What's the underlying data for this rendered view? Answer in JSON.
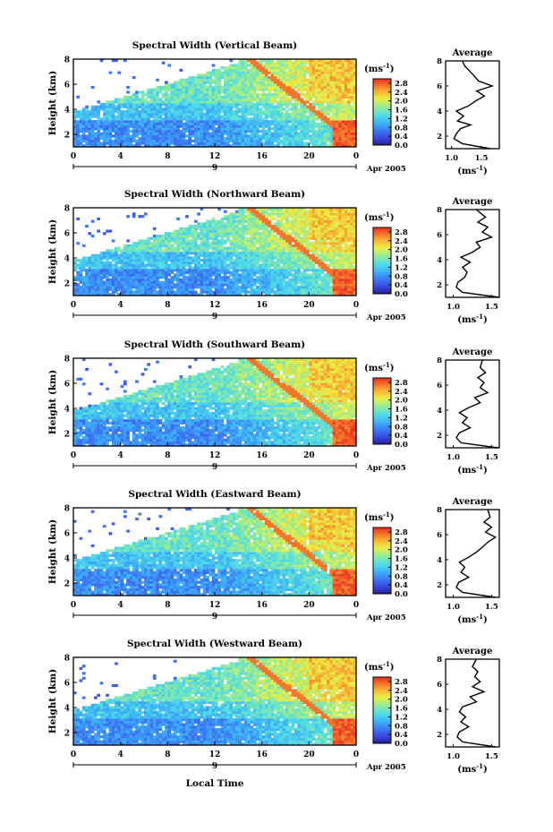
{
  "figure": {
    "xlabel": "Local Time",
    "date_label": "Apr 2005",
    "day_label": "9",
    "colorbar_unit_parts": [
      "(ms",
      "-1",
      ")"
    ],
    "average_title": "Average"
  },
  "chart_data": [
    {
      "type": "heatmap",
      "title": "Spectral Width (Vertical Beam)",
      "xlabel": "",
      "ylabel": "Height (km)",
      "x_ticks": [
        "0",
        "4",
        "8",
        "12",
        "16",
        "20",
        "0"
      ],
      "y_ticks": [
        "2",
        "4",
        "6",
        "8"
      ],
      "xlim": [
        0,
        24
      ],
      "ylim": [
        1,
        8
      ],
      "colorbar": {
        "ticks": [
          "0.0",
          "0.4",
          "0.8",
          "1.2",
          "1.6",
          "2.0",
          "2.4",
          "2.8"
        ],
        "range": [
          0.0,
          3.0
        ]
      },
      "average": {
        "title": "Average",
        "x_ticks": [
          "1.0",
          "1.5"
        ],
        "xlim": [
          0.9,
          1.8
        ],
        "y_ticks": [
          "2",
          "4",
          "6",
          "8"
        ],
        "ylim": [
          1,
          8
        ],
        "profile": [
          {
            "h": 1.0,
            "v": 1.65
          },
          {
            "h": 1.4,
            "v": 1.18
          },
          {
            "h": 1.8,
            "v": 1.04
          },
          {
            "h": 2.2,
            "v": 1.08
          },
          {
            "h": 2.6,
            "v": 1.15
          },
          {
            "h": 2.9,
            "v": 1.32
          },
          {
            "h": 3.2,
            "v": 1.1
          },
          {
            "h": 3.6,
            "v": 1.2
          },
          {
            "h": 4.0,
            "v": 1.08
          },
          {
            "h": 4.4,
            "v": 1.28
          },
          {
            "h": 4.8,
            "v": 1.4
          },
          {
            "h": 5.2,
            "v": 1.55
          },
          {
            "h": 5.6,
            "v": 1.42
          },
          {
            "h": 6.0,
            "v": 1.68
          },
          {
            "h": 6.4,
            "v": 1.45
          },
          {
            "h": 6.8,
            "v": 1.38
          },
          {
            "h": 7.2,
            "v": 1.3
          },
          {
            "h": 7.6,
            "v": 1.22
          },
          {
            "h": 8.0,
            "v": 1.18
          }
        ]
      }
    },
    {
      "type": "heatmap",
      "title": "Spectral Width (Northward Beam)",
      "xlabel": "",
      "ylabel": "Height (km)",
      "x_ticks": [
        "0",
        "4",
        "8",
        "12",
        "16",
        "20",
        "0"
      ],
      "y_ticks": [
        "2",
        "4",
        "6",
        "8"
      ],
      "xlim": [
        0,
        24
      ],
      "ylim": [
        1,
        8
      ],
      "colorbar": {
        "ticks": [
          "0.0",
          "0.4",
          "0.8",
          "1.2",
          "1.6",
          "2.0",
          "2.4",
          "2.8"
        ],
        "range": [
          0.0,
          3.0
        ]
      },
      "average": {
        "title": "Average",
        "x_ticks": [
          "1.0",
          "1.5"
        ],
        "xlim": [
          0.9,
          1.6
        ],
        "y_ticks": [
          "2",
          "4",
          "6",
          "8"
        ],
        "ylim": [
          1,
          8
        ],
        "profile": [
          {
            "h": 1.0,
            "v": 1.6
          },
          {
            "h": 1.4,
            "v": 1.12
          },
          {
            "h": 1.8,
            "v": 1.04
          },
          {
            "h": 2.2,
            "v": 1.06
          },
          {
            "h": 2.6,
            "v": 1.15
          },
          {
            "h": 3.0,
            "v": 1.18
          },
          {
            "h": 3.4,
            "v": 1.12
          },
          {
            "h": 3.8,
            "v": 1.22
          },
          {
            "h": 4.2,
            "v": 1.1
          },
          {
            "h": 4.6,
            "v": 1.25
          },
          {
            "h": 5.0,
            "v": 1.35
          },
          {
            "h": 5.4,
            "v": 1.3
          },
          {
            "h": 5.8,
            "v": 1.5
          },
          {
            "h": 6.2,
            "v": 1.38
          },
          {
            "h": 6.6,
            "v": 1.45
          },
          {
            "h": 7.0,
            "v": 1.32
          },
          {
            "h": 7.4,
            "v": 1.42
          },
          {
            "h": 8.0,
            "v": 1.3
          }
        ]
      }
    },
    {
      "type": "heatmap",
      "title": "Spectral Width (Southward Beam)",
      "xlabel": "",
      "ylabel": "Height (km)",
      "x_ticks": [
        "0",
        "4",
        "8",
        "12",
        "16",
        "20",
        "0"
      ],
      "y_ticks": [
        "2",
        "4",
        "6",
        "8"
      ],
      "xlim": [
        0,
        24
      ],
      "ylim": [
        1,
        8
      ],
      "colorbar": {
        "ticks": [
          "0.0",
          "0.4",
          "0.8",
          "1.2",
          "1.6",
          "2.0",
          "2.4",
          "2.8"
        ],
        "range": [
          0.0,
          3.0
        ]
      },
      "average": {
        "title": "Average",
        "x_ticks": [
          "1.0",
          "1.5"
        ],
        "xlim": [
          0.9,
          1.6
        ],
        "y_ticks": [
          "2",
          "4",
          "6",
          "8"
        ],
        "ylim": [
          1,
          8
        ],
        "profile": [
          {
            "h": 1.0,
            "v": 1.58
          },
          {
            "h": 1.4,
            "v": 1.1
          },
          {
            "h": 1.8,
            "v": 1.04
          },
          {
            "h": 2.2,
            "v": 1.08
          },
          {
            "h": 2.6,
            "v": 1.22
          },
          {
            "h": 3.0,
            "v": 1.12
          },
          {
            "h": 3.4,
            "v": 1.18
          },
          {
            "h": 3.8,
            "v": 1.08
          },
          {
            "h": 4.2,
            "v": 1.2
          },
          {
            "h": 4.6,
            "v": 1.35
          },
          {
            "h": 5.0,
            "v": 1.28
          },
          {
            "h": 5.4,
            "v": 1.45
          },
          {
            "h": 5.8,
            "v": 1.35
          },
          {
            "h": 6.2,
            "v": 1.4
          },
          {
            "h": 6.6,
            "v": 1.32
          },
          {
            "h": 7.0,
            "v": 1.42
          },
          {
            "h": 7.4,
            "v": 1.35
          },
          {
            "h": 8.0,
            "v": 1.38
          }
        ]
      }
    },
    {
      "type": "heatmap",
      "title": "Spectral Width (Eastward Beam)",
      "xlabel": "",
      "ylabel": "Height (km)",
      "x_ticks": [
        "0",
        "4",
        "8",
        "12",
        "16",
        "20",
        "0"
      ],
      "y_ticks": [
        "2",
        "4",
        "6",
        "8"
      ],
      "xlim": [
        0,
        24
      ],
      "ylim": [
        1,
        8
      ],
      "colorbar": {
        "ticks": [
          "0.0",
          "0.4",
          "0.8",
          "1.2",
          "1.6",
          "2.0",
          "2.4",
          "2.8"
        ],
        "range": [
          0.0,
          3.0
        ]
      },
      "average": {
        "title": "Average",
        "x_ticks": [
          "1.0",
          "1.5"
        ],
        "xlim": [
          0.9,
          1.6
        ],
        "y_ticks": [
          "2",
          "4",
          "6",
          "8"
        ],
        "ylim": [
          1,
          8
        ],
        "profile": [
          {
            "h": 1.0,
            "v": 1.55
          },
          {
            "h": 1.4,
            "v": 1.12
          },
          {
            "h": 1.8,
            "v": 1.04
          },
          {
            "h": 2.2,
            "v": 1.07
          },
          {
            "h": 2.6,
            "v": 1.2
          },
          {
            "h": 3.0,
            "v": 1.1
          },
          {
            "h": 3.4,
            "v": 1.15
          },
          {
            "h": 3.8,
            "v": 1.08
          },
          {
            "h": 4.2,
            "v": 1.2
          },
          {
            "h": 4.6,
            "v": 1.3
          },
          {
            "h": 5.0,
            "v": 1.38
          },
          {
            "h": 5.4,
            "v": 1.45
          },
          {
            "h": 5.8,
            "v": 1.55
          },
          {
            "h": 6.2,
            "v": 1.42
          },
          {
            "h": 6.6,
            "v": 1.5
          },
          {
            "h": 7.0,
            "v": 1.4
          },
          {
            "h": 7.4,
            "v": 1.48
          },
          {
            "h": 8.0,
            "v": 1.45
          }
        ]
      }
    },
    {
      "type": "heatmap",
      "title": "Spectral Width (Westward Beam)",
      "xlabel": "Local Time",
      "ylabel": "Height (km)",
      "x_ticks": [
        "0",
        "4",
        "8",
        "12",
        "16",
        "20",
        "0"
      ],
      "y_ticks": [
        "2",
        "4",
        "6",
        "8"
      ],
      "xlim": [
        0,
        24
      ],
      "ylim": [
        1,
        8
      ],
      "colorbar": {
        "ticks": [
          "0.0",
          "0.4",
          "0.8",
          "1.2",
          "1.6",
          "2.0",
          "2.4",
          "2.8"
        ],
        "range": [
          0.0,
          3.0
        ]
      },
      "average": {
        "title": "Average",
        "x_ticks": [
          "1.0",
          "1.5"
        ],
        "xlim": [
          0.9,
          1.6
        ],
        "y_ticks": [
          "2",
          "4",
          "6",
          "8"
        ],
        "ylim": [
          1,
          8
        ],
        "profile": [
          {
            "h": 1.0,
            "v": 1.55
          },
          {
            "h": 1.4,
            "v": 1.12
          },
          {
            "h": 1.8,
            "v": 1.05
          },
          {
            "h": 2.2,
            "v": 1.08
          },
          {
            "h": 2.6,
            "v": 1.2
          },
          {
            "h": 3.0,
            "v": 1.1
          },
          {
            "h": 3.4,
            "v": 1.16
          },
          {
            "h": 3.8,
            "v": 1.08
          },
          {
            "h": 4.2,
            "v": 1.12
          },
          {
            "h": 4.6,
            "v": 1.3
          },
          {
            "h": 5.0,
            "v": 1.22
          },
          {
            "h": 5.4,
            "v": 1.4
          },
          {
            "h": 5.8,
            "v": 1.25
          },
          {
            "h": 6.2,
            "v": 1.35
          },
          {
            "h": 6.6,
            "v": 1.28
          },
          {
            "h": 7.0,
            "v": 1.32
          },
          {
            "h": 7.4,
            "v": 1.25
          },
          {
            "h": 8.0,
            "v": 1.3
          }
        ]
      }
    }
  ]
}
